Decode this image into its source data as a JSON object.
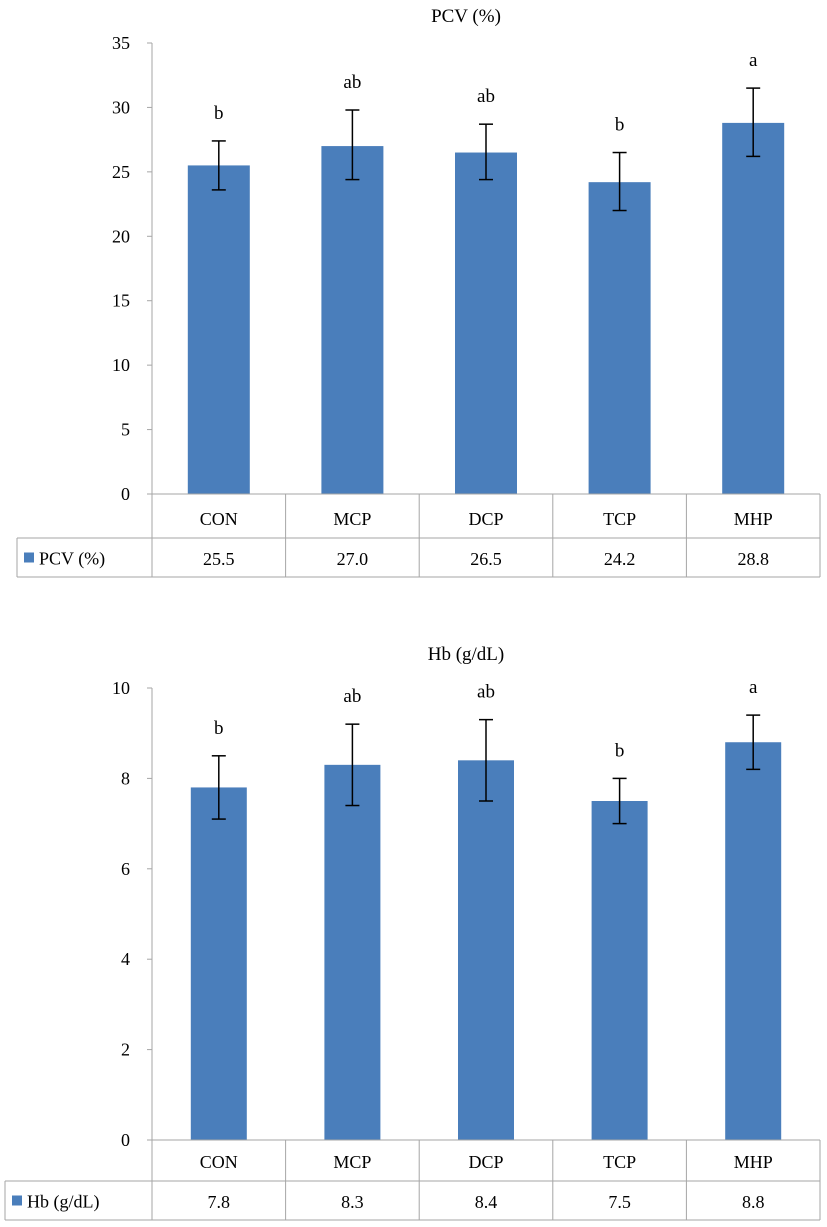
{
  "chart_data": [
    {
      "type": "bar",
      "title": "PCV  (%)",
      "categories": [
        "CON",
        "MCP",
        "DCP",
        "TCP",
        "MHP"
      ],
      "series": [
        {
          "name": "PCV  (%)",
          "values": [
            25.5,
            27.0,
            26.5,
            24.2,
            28.8
          ]
        }
      ],
      "value_labels": [
        "25.5",
        "27.0",
        "26.5",
        "24.2",
        "28.8"
      ],
      "error_low": [
        23.6,
        24.4,
        24.4,
        22.0,
        26.2
      ],
      "error_high": [
        27.4,
        29.8,
        28.7,
        26.5,
        31.5
      ],
      "significance": [
        "b",
        "ab",
        "ab",
        "b",
        "a"
      ],
      "yticks": [
        "0",
        "5",
        "10",
        "15",
        "20",
        "25",
        "30",
        "35"
      ],
      "ylim": [
        0,
        35
      ],
      "bar_color": "#4a7ebb",
      "grid": false,
      "legend": "data-table"
    },
    {
      "type": "bar",
      "title": "Hb (g/dL)",
      "categories": [
        "CON",
        "MCP",
        "DCP",
        "TCP",
        "MHP"
      ],
      "series": [
        {
          "name": "Hb (g/dL)",
          "values": [
            7.8,
            8.3,
            8.4,
            7.5,
            8.8
          ]
        }
      ],
      "value_labels": [
        "7.8",
        "8.3",
        "8.4",
        "7.5",
        "8.8"
      ],
      "error_low": [
        7.1,
        7.4,
        7.5,
        7.0,
        8.2
      ],
      "error_high": [
        8.5,
        9.2,
        9.3,
        8.0,
        9.4
      ],
      "significance": [
        "b",
        "ab",
        "ab",
        "b",
        "a"
      ],
      "yticks": [
        "0",
        "2",
        "4",
        "6",
        "8",
        "10"
      ],
      "ylim": [
        0,
        10
      ],
      "bar_color": "#4a7ebb",
      "grid": false,
      "legend": "data-table"
    }
  ]
}
